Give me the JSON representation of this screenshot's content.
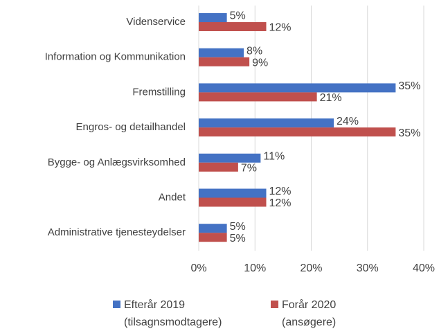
{
  "chart_data": {
    "type": "barh",
    "categories": [
      "Videnservice",
      "Information og Kommunikation",
      "Fremstilling",
      "Engros- og detailhandel",
      "Bygge- og Anlægsvirksomhed",
      "Andet",
      "Administrative tjenesteydelser"
    ],
    "series": [
      {
        "name": "Efterår 2019 (tilsagnsmodtagere)",
        "color": "#4472c4",
        "values": [
          5,
          8,
          35,
          24,
          11,
          12,
          5
        ],
        "value_labels": [
          "5%",
          "8%",
          "35%",
          "24%",
          "11%",
          "12%",
          "5%"
        ]
      },
      {
        "name": "Forår 2020 (ansøgere)",
        "color": "#c0504d",
        "values": [
          12,
          9,
          21,
          35,
          7,
          12,
          5
        ],
        "value_labels": [
          "12%",
          "9%",
          "21%",
          "35%",
          "7%",
          "12%",
          "5%"
        ]
      }
    ],
    "xlim": [
      0,
      40
    ],
    "xticks": [
      {
        "value": 0,
        "label": "0%"
      },
      {
        "value": 10,
        "label": "10%"
      },
      {
        "value": 20,
        "label": "20%"
      },
      {
        "value": 30,
        "label": "30%"
      },
      {
        "value": 40,
        "label": "40%"
      }
    ],
    "grid": true,
    "legend": "bottom"
  }
}
